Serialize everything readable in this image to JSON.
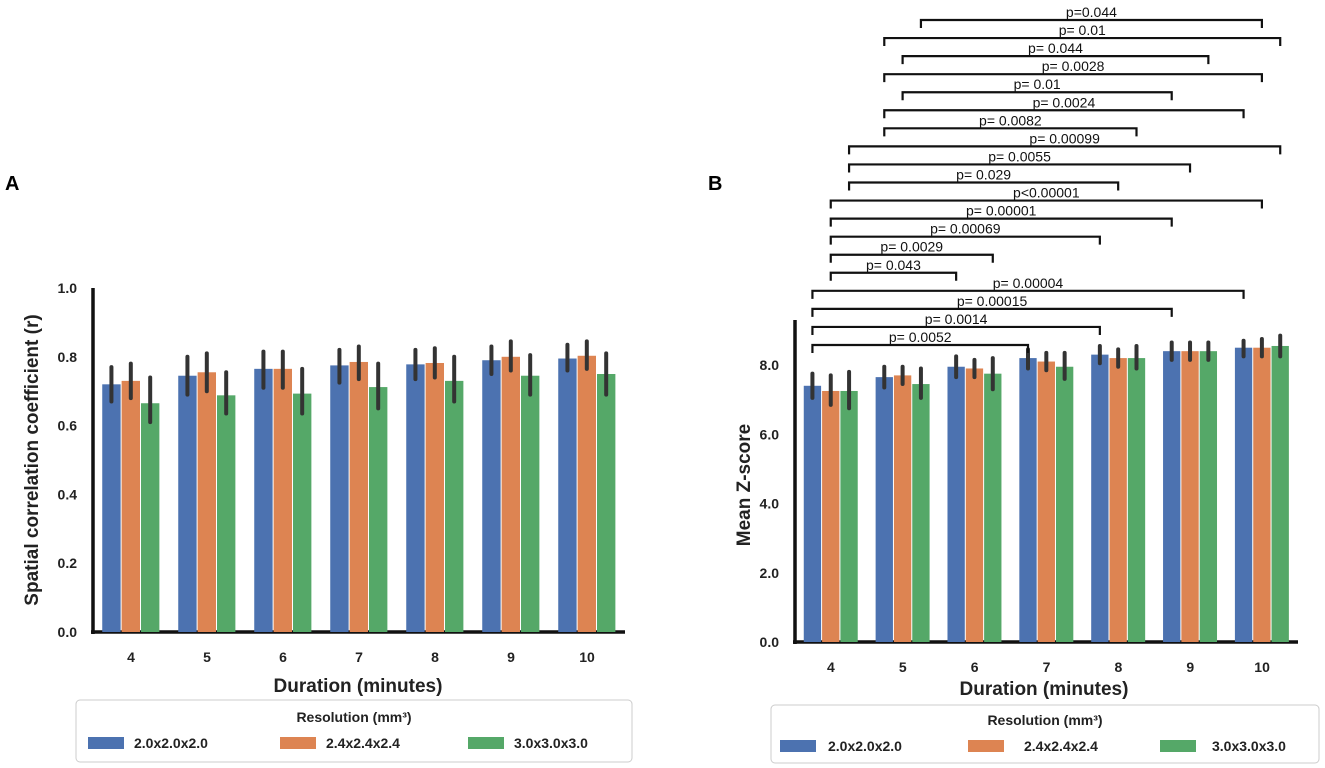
{
  "colors": {
    "series": [
      "#4c72b0",
      "#dd8452",
      "#55a868"
    ],
    "errorbar": "#333333",
    "axis": "#111111"
  },
  "chart_data": [
    {
      "panel": "A",
      "type": "bar",
      "xlabel": "Duration (minutes)",
      "ylabel": "Spatial correlation coefficient (r)",
      "ylim": [
        0,
        1.0
      ],
      "yticks": [
        "0.0",
        "0.2",
        "0.4",
        "0.6",
        "0.8",
        "1.0"
      ],
      "categories": [
        "4",
        "5",
        "6",
        "7",
        "8",
        "9",
        "10"
      ],
      "series": [
        {
          "name": "2.0x2.0x2.0",
          "values": [
            0.72,
            0.745,
            0.765,
            0.775,
            0.778,
            0.79,
            0.795
          ],
          "err_low": [
            0.67,
            0.69,
            0.71,
            0.725,
            0.735,
            0.75,
            0.76
          ],
          "err_high": [
            0.77,
            0.8,
            0.815,
            0.82,
            0.82,
            0.83,
            0.835
          ]
        },
        {
          "name": "2.4x2.4x2.4",
          "values": [
            0.73,
            0.755,
            0.765,
            0.785,
            0.782,
            0.8,
            0.803
          ],
          "err_low": [
            0.68,
            0.7,
            0.71,
            0.735,
            0.74,
            0.76,
            0.765
          ],
          "err_high": [
            0.78,
            0.81,
            0.815,
            0.83,
            0.825,
            0.845,
            0.845
          ]
        },
        {
          "name": "3.0x3.0x3.0",
          "values": [
            0.665,
            0.688,
            0.693,
            0.712,
            0.73,
            0.745,
            0.75
          ],
          "err_low": [
            0.61,
            0.635,
            0.635,
            0.65,
            0.67,
            0.69,
            0.69
          ],
          "err_high": [
            0.74,
            0.755,
            0.765,
            0.78,
            0.8,
            0.805,
            0.81
          ]
        }
      ],
      "legend": {
        "title": "Resolution (mm³)",
        "labels": [
          "2.0x2.0x2.0",
          "2.4x2.4x2.4",
          "3.0x3.0x3.0"
        ]
      }
    },
    {
      "panel": "B",
      "type": "bar",
      "xlabel": "Duration (minutes)",
      "ylabel": "Mean Z-score",
      "ylim": [
        0,
        9.3
      ],
      "yticks": [
        "0.0",
        "2.0",
        "4.0",
        "6.0",
        "8.0"
      ],
      "categories": [
        "4",
        "5",
        "6",
        "7",
        "8",
        "9",
        "10"
      ],
      "series": [
        {
          "name": "2.0x2.0x2.0",
          "values": [
            7.4,
            7.65,
            7.95,
            8.2,
            8.3,
            8.4,
            8.5
          ],
          "err_low": [
            7.05,
            7.35,
            7.65,
            7.9,
            8.05,
            8.15,
            8.25
          ],
          "err_high": [
            7.75,
            7.95,
            8.25,
            8.45,
            8.55,
            8.65,
            8.7
          ]
        },
        {
          "name": "2.4x2.4x2.4",
          "values": [
            7.25,
            7.7,
            7.9,
            8.1,
            8.2,
            8.4,
            8.5
          ],
          "err_low": [
            6.85,
            7.45,
            7.65,
            7.85,
            7.95,
            8.15,
            8.25
          ],
          "err_high": [
            7.7,
            7.95,
            8.15,
            8.35,
            8.45,
            8.65,
            8.75
          ]
        },
        {
          "name": "3.0x3.0x3.0",
          "values": [
            7.25,
            7.45,
            7.75,
            7.95,
            8.2,
            8.4,
            8.55
          ],
          "err_low": [
            6.75,
            7.05,
            7.3,
            7.6,
            7.9,
            8.15,
            8.25
          ],
          "err_high": [
            7.8,
            7.9,
            8.2,
            8.35,
            8.55,
            8.65,
            8.85
          ]
        }
      ],
      "significance": [
        {
          "label": "p=0.044",
          "from": [
            1,
            2
          ],
          "to": [
            6,
            1
          ]
        },
        {
          "label": "p= 0.01",
          "from": [
            1,
            0
          ],
          "to": [
            6,
            2
          ]
        },
        {
          "label": "p= 0.044",
          "from": [
            1,
            1
          ],
          "to": [
            5,
            2
          ]
        },
        {
          "label": "p= 0.0028",
          "from": [
            1,
            0
          ],
          "to": [
            6,
            1
          ]
        },
        {
          "label": "p= 0.01",
          "from": [
            1,
            1
          ],
          "to": [
            5,
            0
          ]
        },
        {
          "label": "p= 0.0024",
          "from": [
            1,
            0
          ],
          "to": [
            6,
            0
          ]
        },
        {
          "label": "p= 0.0082",
          "from": [
            1,
            0
          ],
          "to": [
            4,
            2
          ]
        },
        {
          "label": "p= 0.00099",
          "from": [
            0,
            2
          ],
          "to": [
            6,
            2
          ]
        },
        {
          "label": "p= 0.0055",
          "from": [
            0,
            2
          ],
          "to": [
            5,
            1
          ]
        },
        {
          "label": "p= 0.029",
          "from": [
            0,
            2
          ],
          "to": [
            4,
            1
          ]
        },
        {
          "label": "p<0.00001",
          "from": [
            0,
            1
          ],
          "to": [
            6,
            1
          ]
        },
        {
          "label": "p= 0.00001",
          "from": [
            0,
            1
          ],
          "to": [
            5,
            0
          ]
        },
        {
          "label": "p= 0.00069",
          "from": [
            0,
            1
          ],
          "to": [
            4,
            0
          ]
        },
        {
          "label": "p= 0.0029",
          "from": [
            0,
            1
          ],
          "to": [
            2,
            2
          ]
        },
        {
          "label": "p= 0.043",
          "from": [
            0,
            1
          ],
          "to": [
            2,
            0
          ]
        },
        {
          "label": "p= 0.00004",
          "from": [
            0,
            0
          ],
          "to": [
            6,
            0
          ]
        },
        {
          "label": "p= 0.00015",
          "from": [
            0,
            0
          ],
          "to": [
            5,
            0
          ]
        },
        {
          "label": "p= 0.0014",
          "from": [
            0,
            0
          ],
          "to": [
            4,
            0
          ]
        },
        {
          "label": "p= 0.0052",
          "from": [
            0,
            0
          ],
          "to": [
            3,
            0
          ]
        }
      ],
      "legend": {
        "title": "Resolution (mm³)",
        "labels": [
          "2.0x2.0x2.0",
          "2.4x2.4x2.4",
          "3.0x3.0x3.0"
        ]
      }
    }
  ]
}
